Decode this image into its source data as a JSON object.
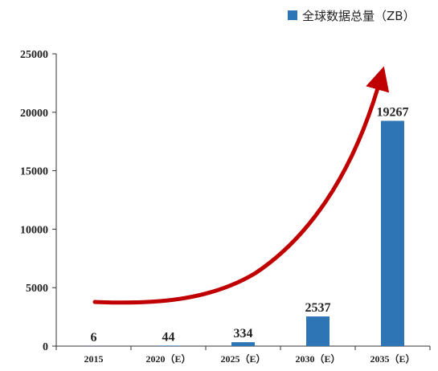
{
  "chart_data": {
    "type": "bar",
    "categories": [
      "2015",
      "2020（E）",
      "2025（E）",
      "2030（E）",
      "2035（E）"
    ],
    "series": [
      {
        "name": "全球数据总量（ZB）",
        "values": [
          6,
          44,
          334,
          2537,
          19267
        ],
        "color": "#2E75B6"
      }
    ],
    "data_labels": [
      "6",
      "44",
      "334",
      "2537",
      "19267"
    ],
    "ylim": [
      0,
      25000
    ],
    "y_ticks": [
      0,
      5000,
      10000,
      15000,
      20000,
      25000
    ],
    "y_tick_labels": [
      "0",
      "5000",
      "10000",
      "15000",
      "20000",
      "25000"
    ],
    "legend_position": "top-right",
    "grid": false,
    "trend_arrow_color": "#C00000"
  },
  "legend": {
    "label": "全球数据总量（ZB）"
  }
}
